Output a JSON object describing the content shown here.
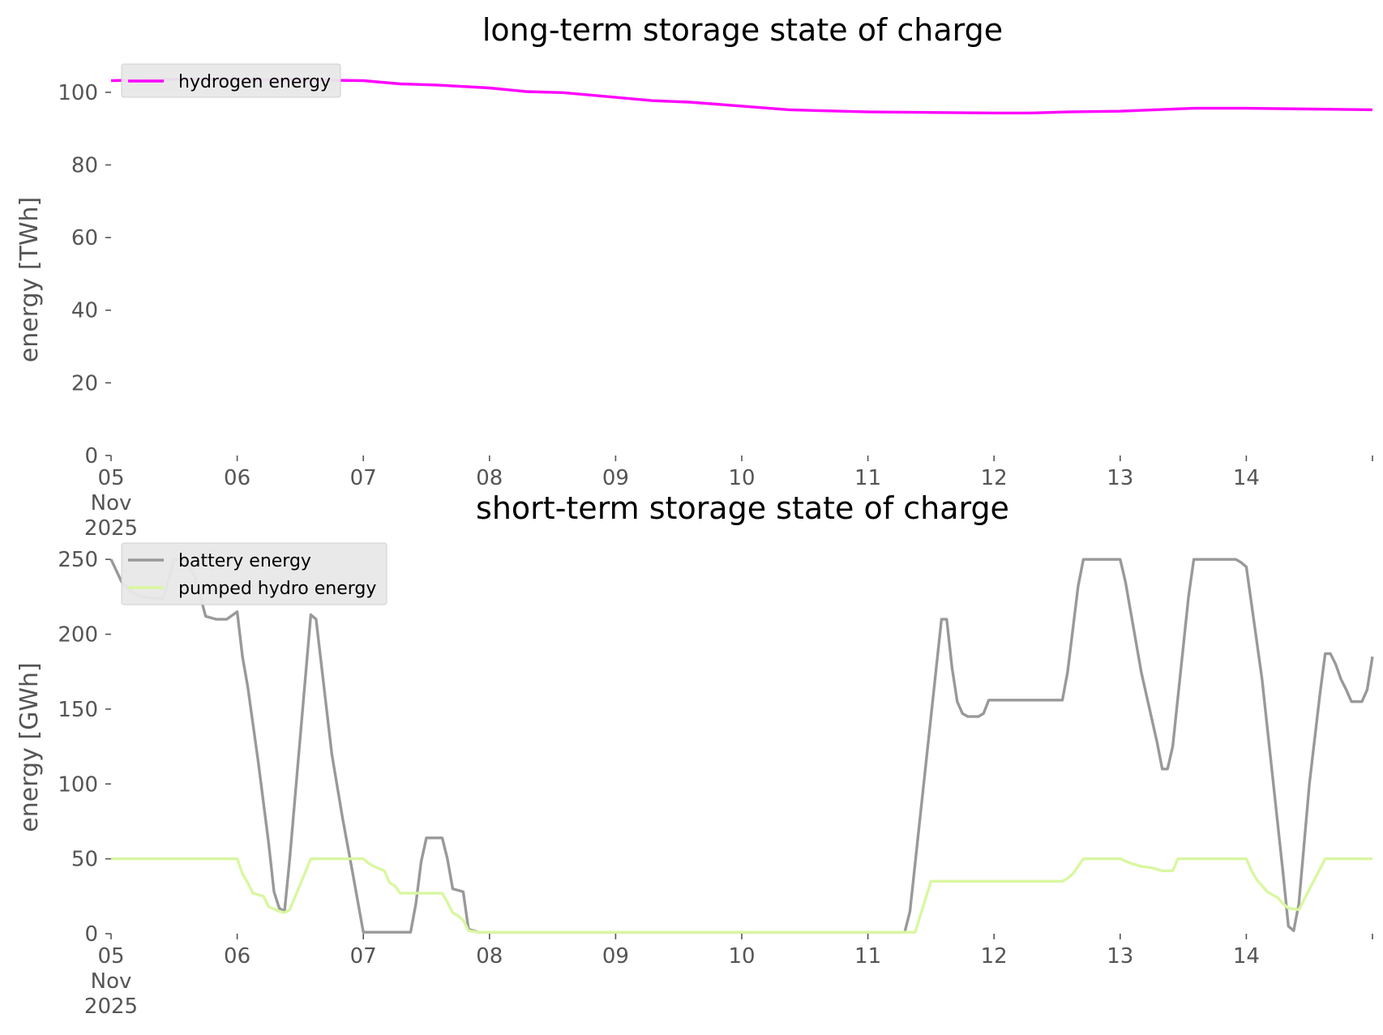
{
  "chart_data": [
    {
      "type": "line",
      "title": "long-term storage state of charge",
      "ylabel": "energy [TWh]",
      "xlabel": "",
      "ylim": [
        0,
        108
      ],
      "xlim": [
        "2025-11-05 00:00",
        "2025-11-15 00:00"
      ],
      "yticks": [
        "0",
        "20",
        "40",
        "60",
        "80",
        "100"
      ],
      "xticks": [
        {
          "day": 0,
          "label": [
            "05",
            "Nov",
            "2025"
          ]
        },
        {
          "day": 1,
          "label": [
            "06"
          ]
        },
        {
          "day": 2,
          "label": [
            "07"
          ]
        },
        {
          "day": 3,
          "label": [
            "08"
          ]
        },
        {
          "day": 4,
          "label": [
            "09"
          ]
        },
        {
          "day": 5,
          "label": [
            "10"
          ]
        },
        {
          "day": 6,
          "label": [
            "11"
          ]
        },
        {
          "day": 7,
          "label": [
            "12"
          ]
        },
        {
          "day": 8,
          "label": [
            "13"
          ]
        },
        {
          "day": 9,
          "label": [
            "14"
          ]
        },
        {
          "day": 10,
          "label": [
            ""
          ]
        }
      ],
      "grid": false,
      "legend_position": "upper-left",
      "series": [
        {
          "name": "hydrogen energy",
          "color": "#ff00ff",
          "points": [
            [
              "2025-11-05 00:00",
              103.2
            ],
            [
              "2025-11-05 12:00",
              103.6
            ],
            [
              "2025-11-06 00:00",
              103.5
            ],
            [
              "2025-11-06 12:00",
              103.4
            ],
            [
              "2025-11-07 00:00",
              103.2
            ],
            [
              "2025-11-07 07:00",
              102.3
            ],
            [
              "2025-11-07 14:00",
              102.0
            ],
            [
              "2025-11-08 00:00",
              101.2
            ],
            [
              "2025-11-08 07:00",
              100.2
            ],
            [
              "2025-11-08 14:00",
              99.9
            ],
            [
              "2025-11-09 00:00",
              98.6
            ],
            [
              "2025-11-09 07:00",
              97.7
            ],
            [
              "2025-11-09 14:00",
              97.3
            ],
            [
              "2025-11-10 00:00",
              96.2
            ],
            [
              "2025-11-10 09:00",
              95.2
            ],
            [
              "2025-11-10 16:00",
              94.9
            ],
            [
              "2025-11-11 00:00",
              94.6
            ],
            [
              "2025-11-12 00:00",
              94.3
            ],
            [
              "2025-11-12 07:00",
              94.3
            ],
            [
              "2025-11-12 14:00",
              94.6
            ],
            [
              "2025-11-13 00:00",
              94.8
            ],
            [
              "2025-11-13 14:00",
              95.6
            ],
            [
              "2025-11-14 00:00",
              95.6
            ],
            [
              "2025-11-14 12:00",
              95.4
            ],
            [
              "2025-11-15 00:00",
              95.2
            ]
          ]
        }
      ]
    },
    {
      "type": "line",
      "title": "short-term storage state of charge",
      "ylabel": "energy [GWh]",
      "xlabel": "",
      "ylim": [
        0,
        262
      ],
      "xlim": [
        "2025-11-05 00:00",
        "2025-11-15 00:00"
      ],
      "yticks": [
        "0",
        "50",
        "100",
        "150",
        "200",
        "250"
      ],
      "xticks": [
        {
          "day": 0,
          "label": [
            "05",
            "Nov",
            "2025"
          ]
        },
        {
          "day": 1,
          "label": [
            "06"
          ]
        },
        {
          "day": 2,
          "label": [
            "07"
          ]
        },
        {
          "day": 3,
          "label": [
            "08"
          ]
        },
        {
          "day": 4,
          "label": [
            "09"
          ]
        },
        {
          "day": 5,
          "label": [
            "10"
          ]
        },
        {
          "day": 6,
          "label": [
            "11"
          ]
        },
        {
          "day": 7,
          "label": [
            "12"
          ]
        },
        {
          "day": 8,
          "label": [
            "13"
          ]
        },
        {
          "day": 9,
          "label": [
            "14"
          ]
        },
        {
          "day": 10,
          "label": [
            ""
          ]
        }
      ],
      "grid": false,
      "legend_position": "upper-left",
      "series": [
        {
          "name": "battery energy",
          "color": "#999999",
          "points": [
            [
              "2025-11-05 00:00",
              250
            ],
            [
              "2025-11-05 02:00",
              235
            ],
            [
              "2025-11-05 04:00",
              228
            ],
            [
              "2025-11-05 06:00",
              225
            ],
            [
              "2025-11-05 08:00",
              224
            ],
            [
              "2025-11-05 10:00",
              224
            ],
            [
              "2025-11-05 12:00",
              250
            ],
            [
              "2025-11-05 14:00",
              250
            ],
            [
              "2025-11-05 16:00",
              238
            ],
            [
              "2025-11-05 18:00",
              212
            ],
            [
              "2025-11-05 20:00",
              210
            ],
            [
              "2025-11-05 22:00",
              210
            ],
            [
              "2025-11-06 00:00",
              215
            ],
            [
              "2025-11-06 01:00",
              185
            ],
            [
              "2025-11-06 02:00",
              165
            ],
            [
              "2025-11-06 04:00",
              115
            ],
            [
              "2025-11-06 06:00",
              60
            ],
            [
              "2025-11-06 07:00",
              28
            ],
            [
              "2025-11-06 08:00",
              17
            ],
            [
              "2025-11-06 09:00",
              15
            ],
            [
              "2025-11-06 10:00",
              50
            ],
            [
              "2025-11-06 14:00",
              213
            ],
            [
              "2025-11-06 15:00",
              210
            ],
            [
              "2025-11-06 18:00",
              120
            ],
            [
              "2025-11-06 20:00",
              78
            ],
            [
              "2025-11-06 22:00",
              40
            ],
            [
              "2025-11-07 00:00",
              1
            ],
            [
              "2025-11-07 09:00",
              1
            ],
            [
              "2025-11-07 10:00",
              20
            ],
            [
              "2025-11-07 11:00",
              48
            ],
            [
              "2025-11-07 12:00",
              64
            ],
            [
              "2025-11-07 15:00",
              64
            ],
            [
              "2025-11-07 16:00",
              50
            ],
            [
              "2025-11-07 17:00",
              30
            ],
            [
              "2025-11-07 19:00",
              28
            ],
            [
              "2025-11-07 20:00",
              3
            ],
            [
              "2025-11-07 22:00",
              1
            ],
            [
              "2025-11-11 07:00",
              1
            ],
            [
              "2025-11-11 08:00",
              15
            ],
            [
              "2025-11-11 14:00",
              210
            ],
            [
              "2025-11-11 15:00",
              210
            ],
            [
              "2025-11-11 16:00",
              178
            ],
            [
              "2025-11-11 17:00",
              155
            ],
            [
              "2025-11-11 18:00",
              147
            ],
            [
              "2025-11-11 19:00",
              145
            ],
            [
              "2025-11-11 21:00",
              145
            ],
            [
              "2025-11-11 22:00",
              147
            ],
            [
              "2025-11-11 23:00",
              156
            ],
            [
              "2025-11-12 13:00",
              156
            ],
            [
              "2025-11-12 14:00",
              175
            ],
            [
              "2025-11-12 16:00",
              232
            ],
            [
              "2025-11-12 17:00",
              250
            ],
            [
              "2025-11-13 00:00",
              250
            ],
            [
              "2025-11-13 01:00",
              235
            ],
            [
              "2025-11-13 04:00",
              175
            ],
            [
              "2025-11-13 07:00",
              128
            ],
            [
              "2025-11-13 08:00",
              110
            ],
            [
              "2025-11-13 09:00",
              110
            ],
            [
              "2025-11-13 10:00",
              125
            ],
            [
              "2025-11-13 13:00",
              225
            ],
            [
              "2025-11-13 14:00",
              250
            ],
            [
              "2025-11-13 22:00",
              250
            ],
            [
              "2025-11-13 23:00",
              248
            ],
            [
              "2025-11-14 00:00",
              245
            ],
            [
              "2025-11-14 03:00",
              170
            ],
            [
              "2025-11-14 05:00",
              105
            ],
            [
              "2025-11-14 07:00",
              40
            ],
            [
              "2025-11-14 08:00",
              5
            ],
            [
              "2025-11-14 09:00",
              2
            ],
            [
              "2025-11-14 10:00",
              20
            ],
            [
              "2025-11-14 12:00",
              100
            ],
            [
              "2025-11-14 14:00",
              160
            ],
            [
              "2025-11-14 15:00",
              187
            ],
            [
              "2025-11-14 16:00",
              187
            ],
            [
              "2025-11-14 17:00",
              180
            ],
            [
              "2025-11-14 18:00",
              170
            ],
            [
              "2025-11-14 19:00",
              163
            ],
            [
              "2025-11-14 20:00",
              155
            ],
            [
              "2025-11-14 22:00",
              155
            ],
            [
              "2025-11-14 23:00",
              163
            ],
            [
              "2025-11-15 00:00",
              185
            ]
          ]
        },
        {
          "name": "pumped hydro energy",
          "color": "#d9f7a0",
          "points": [
            [
              "2025-11-05 00:00",
              50
            ],
            [
              "2025-11-05 23:00",
              50
            ],
            [
              "2025-11-06 00:00",
              50
            ],
            [
              "2025-11-06 01:00",
              40
            ],
            [
              "2025-11-06 02:00",
              34
            ],
            [
              "2025-11-06 03:00",
              27
            ],
            [
              "2025-11-06 05:00",
              25
            ],
            [
              "2025-11-06 06:00",
              18
            ],
            [
              "2025-11-06 08:00",
              15
            ],
            [
              "2025-11-06 09:00",
              14
            ],
            [
              "2025-11-06 10:00",
              16
            ],
            [
              "2025-11-06 14:00",
              50
            ],
            [
              "2025-11-07 00:00",
              50
            ],
            [
              "2025-11-07 01:00",
              47
            ],
            [
              "2025-11-07 02:00",
              45
            ],
            [
              "2025-11-07 04:00",
              42
            ],
            [
              "2025-11-07 05:00",
              34
            ],
            [
              "2025-11-07 06:00",
              32
            ],
            [
              "2025-11-07 07:00",
              27
            ],
            [
              "2025-11-07 15:00",
              27
            ],
            [
              "2025-11-07 16:00",
              21
            ],
            [
              "2025-11-07 17:00",
              14
            ],
            [
              "2025-11-07 18:00",
              12
            ],
            [
              "2025-11-07 19:00",
              9
            ],
            [
              "2025-11-07 20:00",
              2
            ],
            [
              "2025-11-07 22:00",
              1
            ],
            [
              "2025-11-11 09:00",
              1
            ],
            [
              "2025-11-11 12:00",
              35
            ],
            [
              "2025-11-12 13:00",
              35
            ],
            [
              "2025-11-12 14:00",
              37
            ],
            [
              "2025-11-12 15:00",
              40
            ],
            [
              "2025-11-12 16:00",
              45
            ],
            [
              "2025-11-12 17:00",
              50
            ],
            [
              "2025-11-13 00:00",
              50
            ],
            [
              "2025-11-13 02:00",
              47
            ],
            [
              "2025-11-13 04:00",
              45
            ],
            [
              "2025-11-13 06:00",
              44
            ],
            [
              "2025-11-13 08:00",
              42
            ],
            [
              "2025-11-13 10:00",
              42
            ],
            [
              "2025-11-13 11:00",
              50
            ],
            [
              "2025-11-14 00:00",
              50
            ],
            [
              "2025-11-14 01:00",
              42
            ],
            [
              "2025-11-14 02:00",
              36
            ],
            [
              "2025-11-14 04:00",
              28
            ],
            [
              "2025-11-14 06:00",
              24
            ],
            [
              "2025-11-14 07:00",
              20
            ],
            [
              "2025-11-14 08:00",
              17
            ],
            [
              "2025-11-14 10:00",
              16
            ],
            [
              "2025-11-14 15:00",
              50
            ],
            [
              "2025-11-15 00:00",
              50
            ]
          ]
        }
      ]
    }
  ]
}
